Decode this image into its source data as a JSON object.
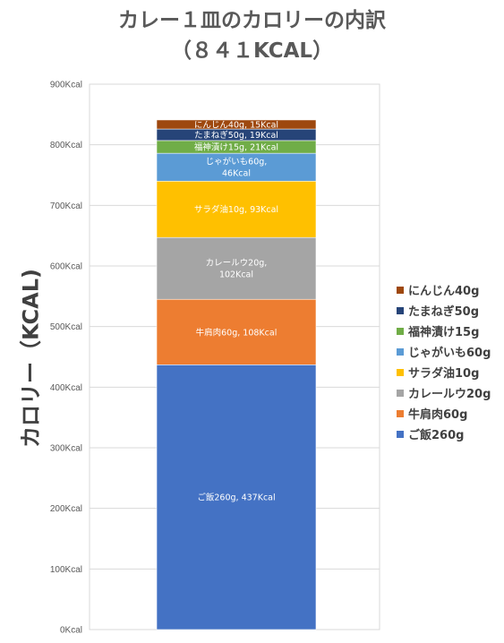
{
  "chart_data": {
    "type": "bar",
    "stacked": true,
    "title_lines": [
      "カレー１皿のカロリーの内訳",
      "（８４１KCAL）"
    ],
    "ylabel": "カロリー（KCAL)",
    "xlabel": "",
    "ylim": [
      0,
      900
    ],
    "y_ticks": [
      "0Kcal",
      "100Kcal",
      "200Kcal",
      "300Kcal",
      "400Kcal",
      "500Kcal",
      "600Kcal",
      "700Kcal",
      "800Kcal",
      "900Kcal"
    ],
    "grid": true,
    "legend_position": "right",
    "series": [
      {
        "name": "ご飯260g",
        "value": 437,
        "color": "#4472C4",
        "label_lines": [
          "ご飯260g, 437Kcal"
        ]
      },
      {
        "name": "牛肩肉60g",
        "value": 108,
        "color": "#ED7D31",
        "label_lines": [
          "牛肩肉60g, 108Kcal"
        ]
      },
      {
        "name": "カレールウ20g",
        "value": 102,
        "color": "#A5A5A5",
        "label_lines": [
          "カレールウ20g,",
          "102Kcal"
        ]
      },
      {
        "name": "サラダ油10g",
        "value": 93,
        "color": "#FFC000",
        "label_lines": [
          "サラダ油10g, 93Kcal"
        ]
      },
      {
        "name": "じゃがいも60g",
        "value": 46,
        "color": "#5B9BD5",
        "label_lines": [
          "じゃがいも60g,",
          "46Kcal"
        ]
      },
      {
        "name": "福神漬け15g",
        "value": 21,
        "color": "#70AD47",
        "label_lines": [
          "福神漬け15g, 21Kcal"
        ]
      },
      {
        "name": "たまねぎ50g",
        "value": 19,
        "color": "#264478",
        "label_lines": [
          "たまねぎ50g, 19Kcal"
        ]
      },
      {
        "name": "にんじん40g",
        "value": 15,
        "color": "#9E480E",
        "label_lines": [
          "にんじん40g, 15Kcal"
        ]
      }
    ]
  },
  "legend_labels": [
    "にんじん40g",
    "たまねぎ50g",
    "福神漬け15g",
    "じゃがいも60g",
    "サラダ油10g",
    "カレールウ20g",
    "牛肩肉60g",
    "ご飯260g"
  ]
}
